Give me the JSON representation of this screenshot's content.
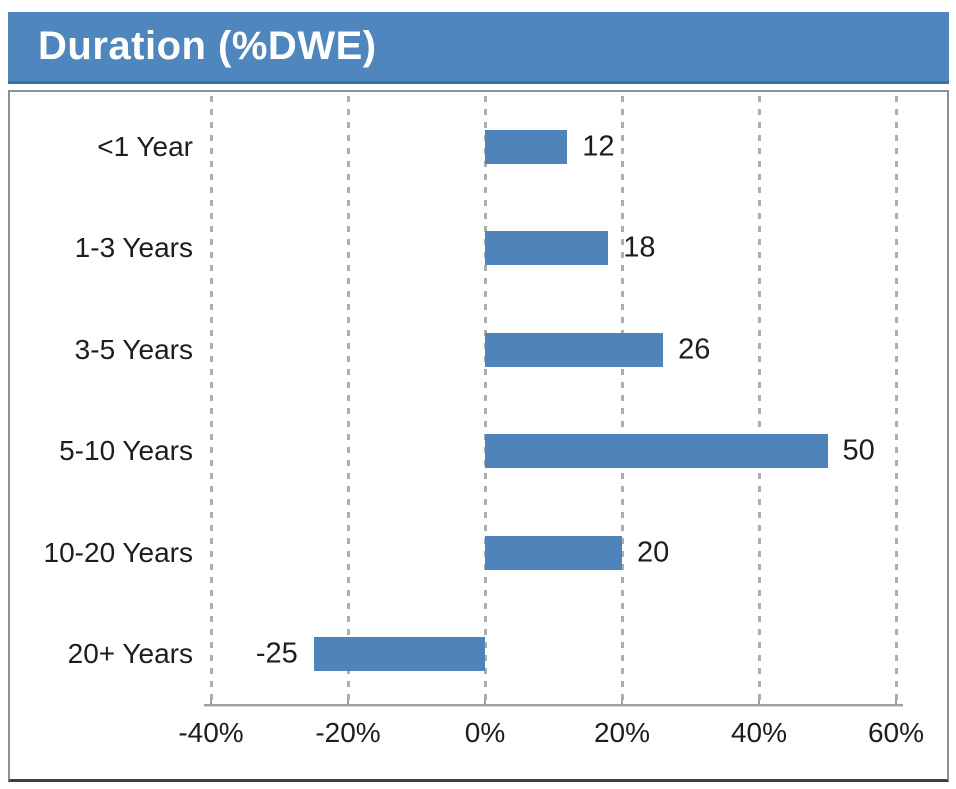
{
  "header": {
    "title": "Duration (%DWE)",
    "bg_color": "#4e86bd",
    "text_color": "#ffffff"
  },
  "chart_data": {
    "type": "bar",
    "orientation": "horizontal",
    "title": "Duration (%DWE)",
    "xlabel": "",
    "ylabel": "",
    "categories": [
      "<1 Year",
      "1-3 Years",
      "3-5 Years",
      "5-10 Years",
      "10-20 Years",
      "20+ Years"
    ],
    "values": [
      12,
      18,
      26,
      50,
      20,
      -25
    ],
    "xlim": [
      -40,
      60
    ],
    "xticks": [
      -40,
      -20,
      0,
      20,
      40,
      60
    ],
    "xtick_labels": [
      "-40%",
      "-20%",
      "0%",
      "20%",
      "40%",
      "60%"
    ],
    "bar_color": "#4e84ba",
    "grid": "dashed-vertical",
    "legend": "none"
  }
}
